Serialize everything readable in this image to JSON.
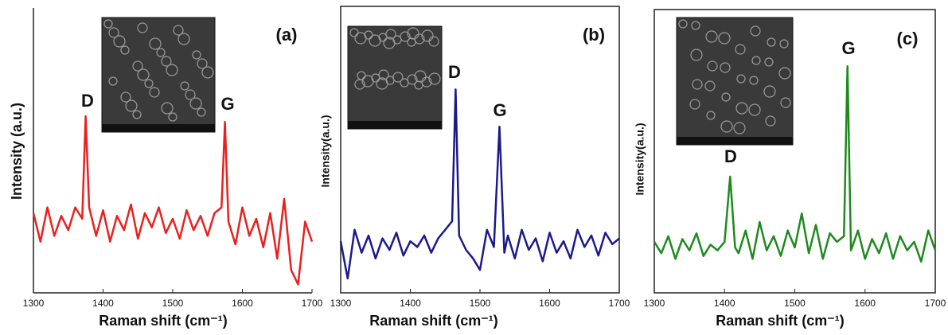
{
  "chart_data": [
    {
      "type": "line",
      "panel": "(a)",
      "annotations": [
        "D",
        "G"
      ],
      "xlabel": "Raman shift (cm⁻¹)",
      "ylabel": "Intensity (a.u.)",
      "x": [
        1300,
        1310,
        1320,
        1330,
        1340,
        1350,
        1360,
        1370,
        1375,
        1380,
        1390,
        1400,
        1410,
        1420,
        1430,
        1440,
        1450,
        1460,
        1470,
        1480,
        1490,
        1500,
        1510,
        1520,
        1530,
        1540,
        1550,
        1560,
        1570,
        1575,
        1580,
        1590,
        1600,
        1610,
        1620,
        1630,
        1640,
        1650,
        1660,
        1670,
        1680,
        1690,
        1700
      ],
      "series": [
        {
          "color": "#e8211f",
          "values": [
            28,
            18,
            30,
            20,
            27,
            22,
            30,
            26,
            62,
            30,
            20,
            29,
            18,
            27,
            22,
            31,
            19,
            28,
            23,
            30,
            21,
            26,
            19,
            29,
            22,
            27,
            20,
            28,
            30,
            60,
            25,
            17,
            30,
            20,
            26,
            16,
            28,
            12,
            33,
            8,
            3,
            25,
            18
          ]
        }
      ],
      "xlim": [
        1300,
        1700
      ],
      "xticks": [
        1300,
        1400,
        1500,
        1600,
        1700
      ],
      "ylim": [
        0,
        100
      ]
    },
    {
      "type": "line",
      "panel": "(b)",
      "annotations": [
        "D",
        "G"
      ],
      "xlabel": "Raman shift (cm⁻¹)",
      "ylabel": "Intensity(a.u.)",
      "x": [
        1300,
        1310,
        1320,
        1330,
        1340,
        1350,
        1360,
        1370,
        1380,
        1390,
        1400,
        1410,
        1420,
        1430,
        1440,
        1450,
        1460,
        1465,
        1470,
        1480,
        1490,
        1500,
        1510,
        1520,
        1528,
        1535,
        1540,
        1550,
        1560,
        1570,
        1580,
        1590,
        1600,
        1610,
        1620,
        1630,
        1640,
        1650,
        1660,
        1670,
        1680,
        1690,
        1700
      ],
      "series": [
        {
          "color": "#1a1a8c",
          "values": [
            18,
            5,
            22,
            14,
            20,
            12,
            19,
            15,
            21,
            13,
            18,
            16,
            20,
            14,
            19,
            22,
            25,
            71,
            20,
            15,
            12,
            8,
            22,
            16,
            58,
            14,
            20,
            12,
            22,
            15,
            19,
            11,
            21,
            14,
            18,
            12,
            22,
            16,
            20,
            13,
            21,
            17,
            19
          ]
        }
      ],
      "xlim": [
        1300,
        1700
      ],
      "xticks": [
        1300,
        1400,
        1500,
        1600,
        1700
      ],
      "ylim": [
        0,
        100
      ]
    },
    {
      "type": "line",
      "panel": "(c)",
      "annotations": [
        "D",
        "G"
      ],
      "xlabel": "Raman shift (cm⁻¹)",
      "ylabel": "Intensity(a.u.)",
      "x": [
        1300,
        1310,
        1320,
        1330,
        1340,
        1350,
        1360,
        1370,
        1380,
        1390,
        1400,
        1408,
        1415,
        1420,
        1430,
        1440,
        1450,
        1460,
        1470,
        1480,
        1490,
        1500,
        1510,
        1520,
        1530,
        1540,
        1550,
        1560,
        1570,
        1575,
        1580,
        1590,
        1600,
        1610,
        1620,
        1630,
        1640,
        1650,
        1660,
        1670,
        1680,
        1690,
        1700
      ],
      "series": [
        {
          "color": "#1e8a1e",
          "values": [
            18,
            14,
            20,
            12,
            19,
            15,
            21,
            13,
            17,
            15,
            18,
            41,
            16,
            14,
            22,
            12,
            25,
            15,
            20,
            13,
            22,
            16,
            28,
            14,
            24,
            12,
            21,
            18,
            20,
            80,
            15,
            22,
            12,
            19,
            14,
            21,
            12,
            20,
            15,
            18,
            11,
            22,
            15
          ]
        }
      ],
      "xlim": [
        1300,
        1700
      ],
      "xticks": [
        1300,
        1400,
        1500,
        1600,
        1700
      ],
      "ylim": [
        0,
        100
      ]
    }
  ]
}
